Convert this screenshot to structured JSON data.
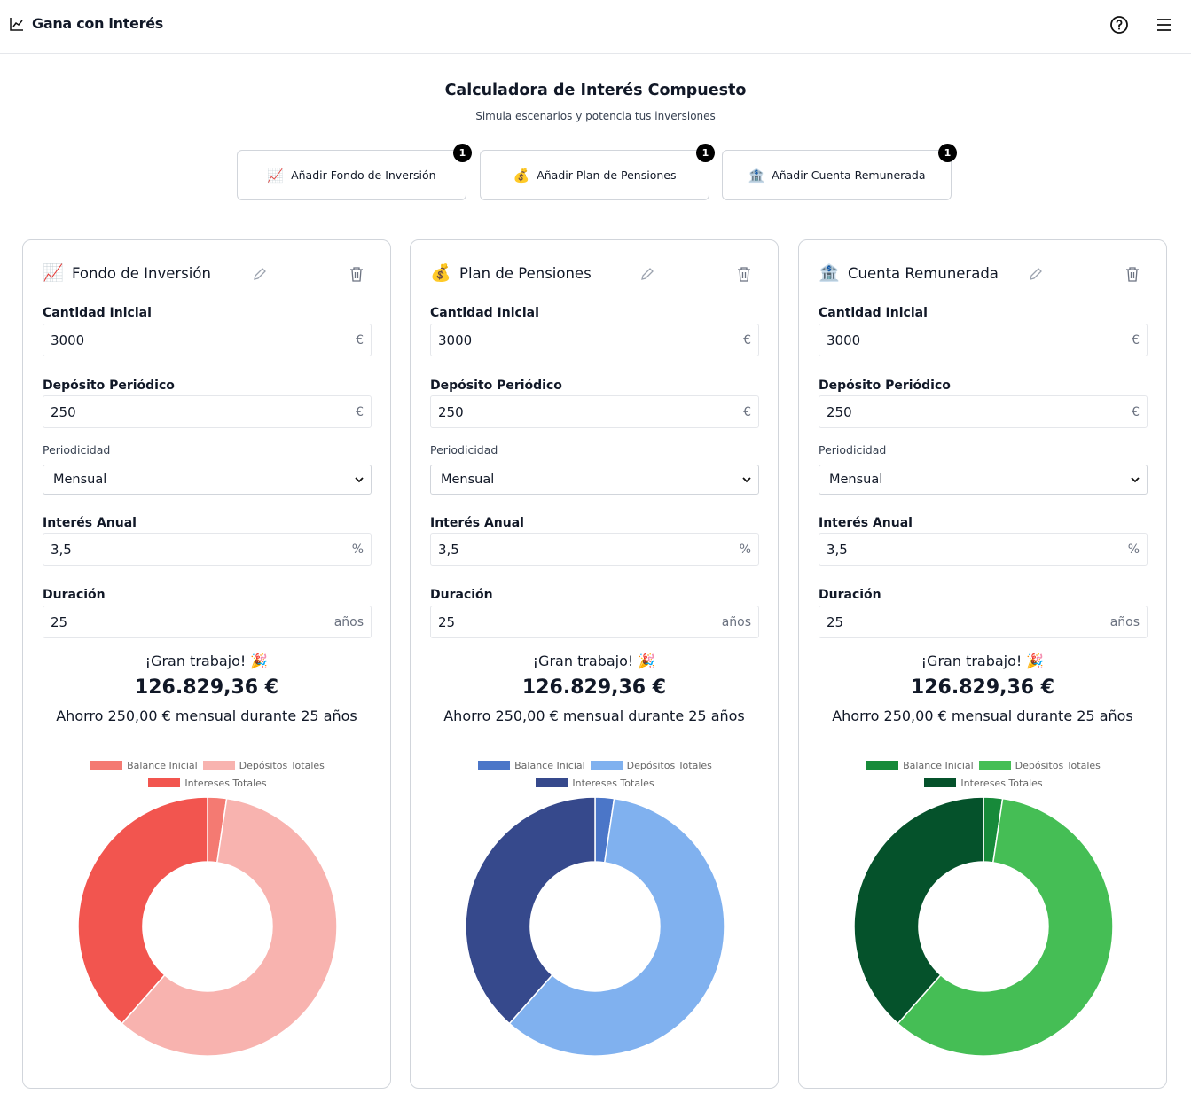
{
  "header": {
    "title": "Gana con interés"
  },
  "intro": {
    "title": "Calculadora de Interés Compuesto",
    "subtitle": "Simula escenarios y potencia tus inversiones"
  },
  "add_buttons": [
    {
      "icon": "📈",
      "label": "Añadir Fondo de Inversión",
      "badge": 1
    },
    {
      "icon": "💰",
      "label": "Añadir Plan de Pensiones",
      "badge": 1
    },
    {
      "icon": "🏦",
      "label": "Añadir Cuenta Remunerada",
      "badge": 1
    }
  ],
  "cards": [
    {
      "icon": "📈",
      "title": "Fondo de Inversión",
      "fields": [
        {
          "label": "Cantidad Inicial",
          "value": 3000,
          "unit": "€"
        },
        {
          "label": "Depósito Periódico",
          "value": 250,
          "unit": "€"
        },
        {
          "label": "Periodicidad",
          "value": "Mensual"
        },
        {
          "label": "Interés Anual",
          "value": "3,5",
          "unit": "%"
        },
        {
          "label": "Duración",
          "value": 25,
          "unit": "años"
        }
      ],
      "result": {
        "greeting": "¡Gran trabajo! 🎉",
        "total": "126.829,36 €",
        "summary": "Ahorro 250,00 € mensual durante 25 años"
      }
    },
    {
      "icon": "💰",
      "title": "Plan de Pensiones",
      "fields": [
        {
          "label": "Cantidad Inicial",
          "value": 3000,
          "unit": "€"
        },
        {
          "label": "Depósito Periódico",
          "value": 250,
          "unit": "€"
        },
        {
          "label": "Periodicidad",
          "value": "Mensual"
        },
        {
          "label": "Interés Anual",
          "value": "3,5",
          "unit": "%"
        },
        {
          "label": "Duración",
          "value": 25,
          "unit": "años"
        }
      ],
      "result": {
        "greeting": "¡Gran trabajo! 🎉",
        "total": "126.829,36 €",
        "summary": "Ahorro 250,00 € mensual durante 25 años"
      }
    },
    {
      "icon": "🏦",
      "title": "Cuenta Remunerada",
      "fields": [
        {
          "label": "Cantidad Inicial",
          "value": 3000,
          "unit": "€"
        },
        {
          "label": "Depósito Periódico",
          "value": 250,
          "unit": "€"
        },
        {
          "label": "Periodicidad",
          "value": "Mensual"
        },
        {
          "label": "Interés Anual",
          "value": "3,5",
          "unit": "%"
        },
        {
          "label": "Duración",
          "value": 25,
          "unit": "años"
        }
      ],
      "result": {
        "greeting": "¡Gran trabajo! 🎉",
        "total": "126.829,36 €",
        "summary": "Ahorro 250,00 € mensual durante 25 años"
      }
    }
  ],
  "chart_data": [
    {
      "type": "doughnut",
      "categories": [
        "Balance Inicial",
        "Depósitos Totales",
        "Intereses Totales"
      ],
      "values": [
        3000,
        75000,
        48829.36
      ],
      "colors": [
        "#f47a72",
        "#f8b3af",
        "#f2554f"
      ]
    },
    {
      "type": "doughnut",
      "categories": [
        "Balance Inicial",
        "Depósitos Totales",
        "Intereses Totales"
      ],
      "values": [
        3000,
        75000,
        48829.36
      ],
      "colors": [
        "#4b76c8",
        "#80b1ef",
        "#36498c"
      ]
    },
    {
      "type": "doughnut",
      "categories": [
        "Balance Inicial",
        "Depósitos Totales",
        "Intereses Totales"
      ],
      "values": [
        3000,
        75000,
        48829.36
      ],
      "colors": [
        "#178a3a",
        "#45be55",
        "#05522b"
      ]
    }
  ]
}
